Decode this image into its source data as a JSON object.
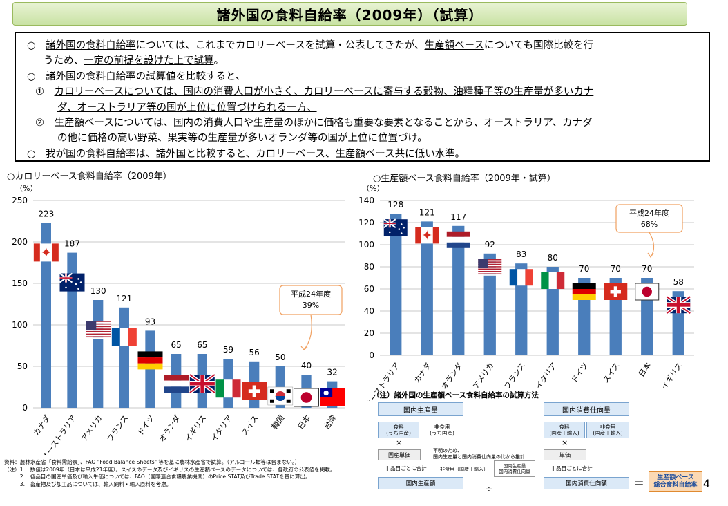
{
  "title": "諸外国の食料自給率（2009年）（試算）",
  "bullets": {
    "b1_pre": "○　",
    "b1_a": "諸外国の食料自給率",
    "b1_b": "については、これまでカロリーベースを試算・公表してきたが、",
    "b1_c": "生産額ベース",
    "b1_d": "についても国際比較を行",
    "b1_line2a": "うため、",
    "b1_line2b": "一定の前提を設けた上で試算",
    "b1_line2c": "。",
    "b2": "○　諸外国の食料自給率の試算値を比較すると、",
    "b3_num": "①　",
    "b3_line1": "カロリーベースについては、国内の消費人口が小さく、カロリーベースに寄与する穀物、油糧種子等の生産量が多いカナ",
    "b3_line2": "ダ、オーストラリア等の国が上位に位置づけられる一方、",
    "b4_num": "②　",
    "b4_line1a": "生産額ベース",
    "b4_line1b": "については、国内の消費人口や生産量のほかに",
    "b4_line1c": "価格も重要な要素",
    "b4_line1d": "となることから、オーストラリア、カナダ",
    "b4_line2a": "の他に",
    "b4_line2b": "価格の高い野菜、果実等の生産量が多いオランダ等の国が上位",
    "b4_line2c": "に位置づけ。",
    "b5_pre": "○　",
    "b5_a": "我が国の食料自給率",
    "b5_b": "は、諸外国と比較すると、",
    "b5_c": "カロリーベース、生産額ベース共に低い水準",
    "b5_d": "。"
  },
  "chart_titles": {
    "left": "○カロリーベース食料自給率（2009年）",
    "right": "○生産額ベース食料自給率（2009年・試算）"
  },
  "chart_data": [
    {
      "type": "bar",
      "ylabel": "（%）",
      "ylim": [
        0,
        250
      ],
      "yticks": [
        0,
        50,
        100,
        150,
        200,
        250
      ],
      "categories": [
        "カナダ",
        "オーストラリア",
        "アメリカ",
        "フランス",
        "ドイツ",
        "オランダ",
        "イギリス",
        "イタリア",
        "スイス",
        "韓国",
        "日本",
        "台湾"
      ],
      "values": [
        223,
        187,
        130,
        121,
        93,
        65,
        65,
        59,
        56,
        50,
        40,
        32
      ],
      "flags": [
        "canada",
        "australia",
        "usa",
        "france",
        "germany",
        "netherlands",
        "uk",
        "italy",
        "switzerland",
        "korea",
        "japan",
        "taiwan"
      ],
      "bar_color": "#4a7ebb",
      "annotation": {
        "line1": "平成24年度",
        "line2": "39%"
      }
    },
    {
      "type": "bar",
      "ylabel": "（%）",
      "ylim": [
        0,
        140
      ],
      "yticks": [
        0,
        20,
        40,
        60,
        80,
        100,
        120,
        140
      ],
      "categories": [
        "オーストラリア",
        "カナダ",
        "オランダ",
        "アメリカ",
        "フランス",
        "イタリア",
        "ドイツ",
        "スイス",
        "日本",
        "イギリス"
      ],
      "values": [
        128,
        121,
        117,
        92,
        83,
        80,
        70,
        70,
        70,
        58
      ],
      "flags": [
        "australia",
        "canada",
        "netherlands",
        "usa",
        "france",
        "italy",
        "germany",
        "switzerland",
        "japan",
        "uk"
      ],
      "bar_color": "#4a7ebb",
      "annotation": {
        "line1": "平成24年度",
        "line2": "68%"
      }
    }
  ],
  "method": {
    "title": "（注）諸外国の生産額ベース食料自給率の試算方法",
    "domestic_production": "国内生産量",
    "food_sub": "食料\n(うち国産)",
    "nonfood_sub": "非食用\n(うち国産)",
    "domestic_consumption": "国内消費仕向量",
    "food_sub2": "食料\n(国産＋輸入)",
    "nonfood_sub2": "非食用\n(国産＋輸入)",
    "times": "×",
    "domestic_price": "国産単価",
    "unit_price": "単価",
    "sum_note": "‖ 品目ごとに合計",
    "sum_note2": "‖ 品目ごとに合計",
    "unknown_note": "不明のため、\n国内生産量と国内消費仕向量の比から推計",
    "formula_a": "非食用（国産＋輸入）",
    "formula_b": "国内生産量\n国内消費仕向量",
    "prod_value": "国内生産額",
    "cons_value": "国内消費仕向額",
    "divide": "÷",
    "equals": "＝",
    "result": "生産額ベース\n総合食料自給率"
  },
  "notes": "資料：農林水産省「食料需給表」、FAO \"Food Balance Sheets\" 等を基に農林水産省で試算。（アルコール類等は含まない。）\n（注）1.　数値は2009年（日本は平成21年度）。スイスのデータ及びイギリスの生産額ベースのデータについては、各政府の公表値を掲載。\n　　　2.　各品目の国産単価及び輸入単価については、FAO（国際連合食糧農業機関）のPrice STAT及びTrade STATを基に算出。\n　　　3.　畜産物及び加工品については、輸入飼料・輸入原料を考慮。",
  "page_number": "4"
}
